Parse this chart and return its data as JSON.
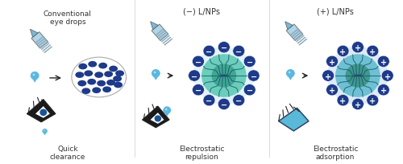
{
  "title1": "Conventional\neye drops",
  "title2": "(−) L/NPs",
  "title3": "(+) L/NPs",
  "label1": "Quick\nclearance",
  "label2": "Electrostatic\nrepulsion",
  "label3": "Electrostatic\nadsorption",
  "bg_color": "#ffffff",
  "dark_blue": "#1e3a7a",
  "med_blue": "#1565c0",
  "light_blue": "#5bc8e8",
  "teal": "#4dd0b8",
  "navy": "#283593",
  "text_color": "#333333",
  "arrow_color": "#222222",
  "dropper_body": "#b8d8ea",
  "dropper_stripe": "#8aaabb",
  "nanoparticle_neg_center": "#5cc8b8",
  "nanoparticle_pos_center": "#3a5aaa",
  "outer_circle": "#1a3a8c"
}
